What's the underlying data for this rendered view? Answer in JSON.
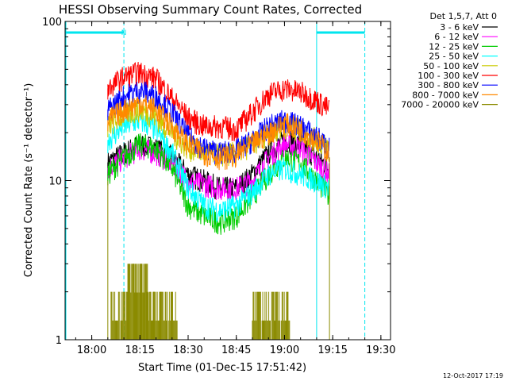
{
  "chart_data": {
    "type": "line",
    "title": "HESSI Observing Summary Count Rates, Corrected",
    "xlabel": "Start Time (01-Dec-15 17:51:42)",
    "ylabel": "Corrected Count Rate (s⁻¹ detector⁻¹)",
    "x_scale": "time",
    "x_range": [
      "17:51:42",
      "19:33:00"
    ],
    "y_scale": "log",
    "ylim": [
      1,
      100
    ],
    "x_ticks": [
      "18:00",
      "18:15",
      "18:30",
      "18:45",
      "19:00",
      "19:15",
      "19:30"
    ],
    "y_ticks": [
      "1",
      "10",
      "100"
    ],
    "legend_title": "Det 1,5,7, Att 0",
    "legend_position": "right",
    "timestamp": "12-Oct-2017 17:19",
    "annotation": "N",
    "night_intervals": [
      [
        "17:51:42",
        "18:10:00"
      ],
      [
        "19:10:00",
        "19:25:00"
      ]
    ],
    "saa_markers_dashed": [
      "18:10:00",
      "19:25:00"
    ],
    "data_gaps_solid": [
      "17:51:42",
      "19:10:00"
    ],
    "series": [
      {
        "name": "3 - 6 keV",
        "color": "#000000",
        "x": [
          "18:05",
          "18:10",
          "18:15",
          "18:20",
          "18:25",
          "18:30",
          "18:35",
          "18:40",
          "18:45",
          "18:50",
          "18:55",
          "19:00",
          "19:05",
          "19:10",
          "19:14"
        ],
        "values": [
          13,
          15,
          17,
          16,
          14,
          11,
          10,
          9,
          9,
          11,
          15,
          18,
          17,
          14,
          12
        ]
      },
      {
        "name": "6 - 12 keV",
        "color": "#ff00ff",
        "x": [
          "18:05",
          "18:10",
          "18:15",
          "18:20",
          "18:25",
          "18:30",
          "18:35",
          "18:40",
          "18:45",
          "18:50",
          "18:55",
          "19:00",
          "19:05",
          "19:10",
          "19:14"
        ],
        "values": [
          12,
          14,
          16,
          15,
          13,
          10,
          9.5,
          9,
          9,
          10,
          14,
          17,
          16,
          13,
          11
        ]
      },
      {
        "name": "12 - 25 keV",
        "color": "#00cc00",
        "x": [
          "18:05",
          "18:10",
          "18:15",
          "18:20",
          "18:25",
          "18:30",
          "18:35",
          "18:40",
          "18:45",
          "18:50",
          "18:55",
          "19:00",
          "19:05",
          "19:10",
          "19:14"
        ],
        "values": [
          11,
          14,
          17,
          16,
          12,
          7,
          6,
          5.5,
          6,
          8,
          11,
          14,
          13,
          10,
          8
        ]
      },
      {
        "name": "25 - 50 keV",
        "color": "#00ffff",
        "x": [
          "18:05",
          "18:10",
          "18:15",
          "18:20",
          "18:25",
          "18:30",
          "18:35",
          "18:40",
          "18:45",
          "18:50",
          "18:55",
          "19:00",
          "19:05",
          "19:10",
          "19:14"
        ],
        "values": [
          18,
          22,
          24,
          21,
          15,
          9,
          7,
          6.5,
          7,
          8.5,
          11,
          12,
          11,
          10,
          9
        ]
      },
      {
        "name": "50 - 100 keV",
        "color": "#cccc00",
        "x": [
          "18:05",
          "18:10",
          "18:15",
          "18:20",
          "18:25",
          "18:30",
          "18:35",
          "18:40",
          "18:45",
          "18:50",
          "18:55",
          "19:00",
          "19:05",
          "19:10",
          "19:14"
        ],
        "values": [
          22,
          26,
          28,
          25,
          20,
          16,
          15,
          14.5,
          15,
          17,
          20,
          22,
          21,
          18,
          16
        ]
      },
      {
        "name": "100 - 300 keV",
        "color": "#ff0000",
        "x": [
          "18:05",
          "18:10",
          "18:15",
          "18:20",
          "18:25",
          "18:30",
          "18:35",
          "18:40",
          "18:45",
          "18:50",
          "18:55",
          "19:00",
          "19:05",
          "19:10",
          "19:14"
        ],
        "values": [
          38,
          45,
          48,
          44,
          33,
          25,
          22,
          22,
          21,
          27,
          35,
          38,
          36,
          32,
          28
        ]
      },
      {
        "name": "300 - 800 keV",
        "color": "#0000ff",
        "x": [
          "18:05",
          "18:10",
          "18:15",
          "18:20",
          "18:25",
          "18:30",
          "18:35",
          "18:40",
          "18:45",
          "18:50",
          "18:55",
          "19:00",
          "19:05",
          "19:10",
          "19:14"
        ],
        "values": [
          28,
          34,
          37,
          34,
          27,
          19,
          16,
          15,
          15.5,
          18,
          22,
          24,
          22,
          19,
          16
        ]
      },
      {
        "name": "800 - 7000 keV",
        "color": "#ff8800",
        "x": [
          "18:05",
          "18:10",
          "18:15",
          "18:20",
          "18:25",
          "18:30",
          "18:35",
          "18:40",
          "18:45",
          "18:50",
          "18:55",
          "19:00",
          "19:05",
          "19:10",
          "19:14"
        ],
        "values": [
          24,
          28,
          31,
          28,
          22,
          17,
          15,
          14,
          14.5,
          17,
          20,
          23,
          21,
          18,
          15
        ]
      },
      {
        "name": "7000 - 20000 keV",
        "color": "#8b8b00",
        "x": [
          "18:06",
          "18:09",
          "18:11",
          "18:13",
          "18:15",
          "18:17",
          "18:19",
          "18:21",
          "18:24",
          "18:50",
          "18:53",
          "18:56",
          "18:59"
        ],
        "values": [
          2,
          2,
          3,
          3,
          3,
          2,
          2,
          2,
          2,
          2,
          2,
          2,
          2
        ]
      }
    ]
  }
}
